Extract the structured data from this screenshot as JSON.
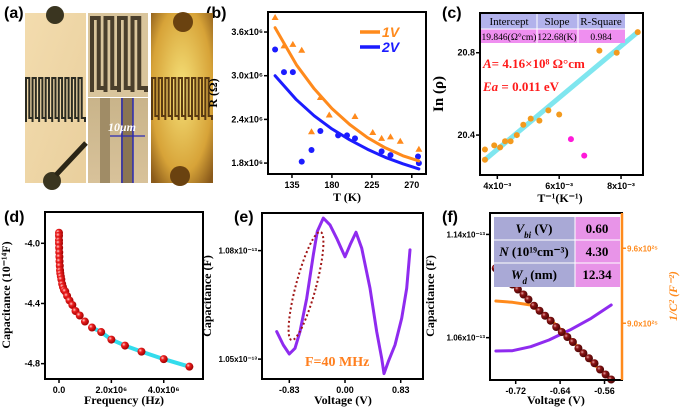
{
  "panel_labels": [
    "(a)",
    "(b)",
    "(c)",
    "(d)",
    "(e)",
    "(f)"
  ],
  "panel_a": {
    "scale_label": "10μm",
    "scale_color": "#2b2bb5"
  },
  "colors": {
    "orange": "#ff8a1c",
    "blue": "#1c1cff",
    "cyan": "#7fe6ef",
    "magenta": "#ff1ad9",
    "red": "#e51212",
    "purple": "#8f2bef",
    "brown": "#8b1414",
    "dark_orange_text": "#ff7f1e",
    "annot_red": "#ff1a1a",
    "table_lavender": "#b2b2ec",
    "table_pink": "#ef8ff0",
    "table_f_left": "#a9a9d6",
    "table_f_right": "#e894e8"
  },
  "chart_data": [
    {
      "panel": "(b)",
      "type": "scatter",
      "xlabel": "T (K)",
      "ylabel": "R (Ω)",
      "xlim": [
        108,
        286
      ],
      "ylim": [
        1650000,
        3875000
      ],
      "xticks": [
        {
          "v": 135,
          "label": "135"
        },
        {
          "v": 180,
          "label": "180"
        },
        {
          "v": 225,
          "label": "225"
        },
        {
          "v": 270,
          "label": "270"
        }
      ],
      "yticks": [
        {
          "v": 1800000,
          "label": "1.8x10⁶"
        },
        {
          "v": 2400000,
          "label": "2.4x10⁶"
        },
        {
          "v": 3000000,
          "label": "3.0x10⁶"
        },
        {
          "v": 3600000,
          "label": "3.6x10⁶"
        }
      ],
      "legend": {
        "placement": "top-right",
        "entries": [
          {
            "name": "1V",
            "color": "#ff8a1c"
          },
          {
            "name": "2V",
            "color": "#1c1cff"
          }
        ]
      },
      "series": [
        {
          "name": "1V",
          "type": "scatter",
          "marker": "triangle",
          "color": "#ff8a1c",
          "x": [
            116,
            126,
            136,
            146,
            157,
            167,
            177,
            206,
            226,
            236,
            246,
            257,
            278
          ],
          "y": [
            3800000,
            3410000,
            3430000,
            3350000,
            2230000,
            2700000,
            2460000,
            2440000,
            2220000,
            2140000,
            2160000,
            2100000,
            1990000
          ]
        },
        {
          "name": "2V",
          "type": "scatter",
          "marker": "circle",
          "color": "#1c1cff",
          "x": [
            116,
            126,
            136,
            146,
            157,
            167,
            187,
            197,
            206,
            236,
            246,
            277,
            278
          ],
          "y": [
            3360000,
            3050000,
            3050000,
            1820000,
            1980000,
            2240000,
            2180000,
            2180000,
            2140000,
            1960000,
            1910000,
            1890000,
            1800000
          ]
        },
        {
          "name": "1V",
          "type": "line",
          "color": "#ff8a1c",
          "x": [
            116,
            140,
            160,
            180,
            200,
            220,
            240,
            260,
            278
          ],
          "y": [
            3660000,
            3150000,
            2820000,
            2550000,
            2330000,
            2150000,
            2010000,
            1900000,
            1830000
          ]
        },
        {
          "name": "2V",
          "type": "line",
          "color": "#1c1cff",
          "x": [
            116,
            140,
            160,
            180,
            200,
            220,
            240,
            260,
            278
          ],
          "y": [
            3000000,
            2670000,
            2450000,
            2270000,
            2120000,
            1990000,
            1880000,
            1790000,
            1720000
          ]
        }
      ]
    },
    {
      "panel": "(c)",
      "type": "scatter",
      "xlabel": "T⁻¹(K⁻¹)",
      "ylabel": "In (ρ)",
      "xlim": [
        0.00344,
        0.00871
      ],
      "ylim": [
        20.206,
        20.993
      ],
      "xticks": [
        {
          "v": 0.004,
          "label": "4x10⁻³"
        },
        {
          "v": 0.006,
          "label": "6x10⁻³"
        },
        {
          "v": 0.008,
          "label": "8x10⁻³"
        }
      ],
      "yticks": [
        {
          "v": 20.4,
          "label": "20.4"
        },
        {
          "v": 20.8,
          "label": "20.8"
        }
      ],
      "table": {
        "headers": [
          "Intercept",
          "Slope",
          "R-Square"
        ],
        "row": [
          "19.846(Ω°cm)",
          "122.68(K)",
          "0.984"
        ]
      },
      "annotations": {
        "A_label": "A",
        "A_value": "= 4.16×10⁸ Ω°cm",
        "Ea_label": "Ea",
        "Ea_value": " = 0.011 eV"
      },
      "series": [
        {
          "type": "line",
          "color": "#7fe6ef",
          "x": [
            0.0036,
            0.00854
          ],
          "y": [
            20.28,
            20.9
          ]
        },
        {
          "type": "scatter",
          "marker": "circle",
          "color": "#f39a1e",
          "x": [
            0.0036,
            0.0036,
            0.0039,
            0.00409,
            0.00425,
            0.00443,
            0.00463,
            0.00484,
            0.00508,
            0.00536,
            0.00565,
            0.006,
            0.0073,
            0.00786,
            0.00854
          ],
          "y": [
            20.28,
            20.33,
            20.35,
            20.34,
            20.37,
            20.37,
            20.4,
            20.45,
            20.48,
            20.47,
            20.52,
            20.5,
            20.81,
            20.8,
            20.9
          ]
        },
        {
          "type": "scatter",
          "marker": "circle",
          "color": "#ff1ad9",
          "x": [
            0.00638,
            0.00681
          ],
          "y": [
            20.38,
            20.3
          ]
        }
      ]
    },
    {
      "panel": "(d)",
      "type": "scatter",
      "xlabel": "Frequency (Hz)",
      "ylabel": "Capacitance (10⁻¹⁴F)",
      "xlim": [
        -535000,
        5500000
      ],
      "ylim": [
        -4.902,
        -3.792
      ],
      "xticks": [
        {
          "v": 0,
          "label": "0.0"
        },
        {
          "v": 2000000,
          "label": "2.0x10⁶"
        },
        {
          "v": 4000000,
          "label": "4.0x10⁶"
        }
      ],
      "yticks": [
        {
          "v": -4.0,
          "label": "-4.0"
        },
        {
          "v": -4.4,
          "label": "-4.4"
        },
        {
          "v": -4.8,
          "label": "-4.8"
        }
      ],
      "series": [
        {
          "type": "line",
          "color": "#33dcec",
          "x": [
            1260000,
            1610000,
            2000000,
            2520000,
            3150000,
            4000000,
            4980000
          ],
          "y": [
            -4.56,
            -4.59,
            -4.64,
            -4.68,
            -4.72,
            -4.77,
            -4.82
          ]
        },
        {
          "type": "scatter",
          "marker": "sphere",
          "color": "#e51212",
          "x": [
            0,
            0,
            0,
            0,
            5000,
            10000,
            15000,
            20000,
            30000,
            40000,
            50000,
            70000,
            90000,
            120000,
            150000,
            190000,
            240000,
            310000,
            400000,
            510000,
            630000,
            790000,
            990000,
            1260000,
            1610000,
            2000000,
            2520000,
            3150000,
            4000000,
            4980000
          ],
          "y": [
            -3.93,
            -3.95,
            -3.98,
            -4.0,
            -4.03,
            -4.06,
            -4.09,
            -4.12,
            -4.15,
            -4.18,
            -4.2,
            -4.22,
            -4.24,
            -4.27,
            -4.29,
            -4.31,
            -4.32,
            -4.35,
            -4.38,
            -4.41,
            -4.45,
            -4.48,
            -4.52,
            -4.56,
            -4.59,
            -4.64,
            -4.68,
            -4.72,
            -4.77,
            -4.82
          ]
        }
      ]
    },
    {
      "panel": "(e)",
      "type": "line",
      "xlabel": "Voltage (V)",
      "ylabel": "Capacitance (F)",
      "xlim": [
        -1.237,
        1.162
      ],
      "ylim": [
        1.0445e-13,
        1.0904e-13
      ],
      "xticks": [
        {
          "v": -0.83,
          "label": "-0.83"
        },
        {
          "v": 0,
          "label": "0.00"
        },
        {
          "v": 0.83,
          "label": "0.83"
        }
      ],
      "yticks": [
        {
          "v": 1.05e-13,
          "label": "1.05x10⁻¹³"
        },
        {
          "v": 1.08e-13,
          "label": "1.08x10⁻¹³"
        }
      ],
      "annotation": "F=40 MHz",
      "series": [
        {
          "type": "line",
          "color": "#8f2bef",
          "x": [
            -1.018,
            -0.919,
            -0.83,
            -0.745,
            -0.671,
            -0.571,
            -0.472,
            -0.413,
            -0.323,
            -0.224,
            -0.124,
            0,
            0.075,
            0.164,
            0.248,
            0.373,
            0.472,
            0.547,
            0.581,
            0.645,
            0.745,
            0.844,
            0.919,
            0.968
          ],
          "y": [
            1.0576e-13,
            1.0539e-13,
            1.0514e-13,
            1.053e-13,
            1.0576e-13,
            1.0668e-13,
            1.0788e-13,
            1.0853e-13,
            1.089e-13,
            1.0871e-13,
            1.0834e-13,
            1.0783e-13,
            1.0816e-13,
            1.0851e-13,
            1.0807e-13,
            1.0696e-13,
            1.0576e-13,
            1.0502e-13,
            1.046e-13,
            1.0493e-13,
            1.0539e-13,
            1.0613e-13,
            1.0696e-13,
            1.0802e-13
          ]
        }
      ]
    },
    {
      "panel": "(f)",
      "type": "line",
      "xlabel": "Voltage (V)",
      "ylabel": "Capacitance (F)",
      "ylabel_right": "1/C² (F⁻²)",
      "xlim": [
        -0.7663,
        -0.5285
      ],
      "ylim": [
        1.0272e-13,
        1.1566e-13
      ],
      "ylim_right": [
        8.546e+25,
        9.882e+25
      ],
      "xticks": [
        {
          "v": -0.72,
          "label": "-0.72"
        },
        {
          "v": -0.64,
          "label": "-0.64"
        },
        {
          "v": -0.56,
          "label": "-0.56"
        }
      ],
      "yticks": [
        {
          "v": 1.06e-13,
          "label": "1.06x10⁻¹³"
        },
        {
          "v": 1.14e-13,
          "label": "1.14x10⁻¹³"
        }
      ],
      "yticks_right": [
        {
          "v": 9e+25,
          "label": "9.0x10²⁵"
        },
        {
          "v": 9.6e+25,
          "label": "9.6x10²⁵"
        }
      ],
      "table": [
        {
          "sym": "V",
          "sub": "bi",
          "unit": " (V)",
          "value": "0.60"
        },
        {
          "sym": "N",
          "sub": "",
          "unit": " (10¹⁹cm⁻³)",
          "value": "4.30"
        },
        {
          "sym": "W",
          "sub": "d",
          "unit": " (nm)",
          "value": "12.34"
        }
      ],
      "series": [
        {
          "type": "line",
          "axis": "left",
          "color": "#8f2bef",
          "x": [
            -0.7556,
            -0.726,
            -0.693,
            -0.66,
            -0.622,
            -0.584,
            -0.548
          ],
          "y": [
            1.0497e-13,
            1.0499e-13,
            1.053e-13,
            1.0582e-13,
            1.066e-13,
            1.075e-13,
            1.0853e-13
          ]
        },
        {
          "type": "line",
          "axis": "right",
          "color": "#ff8a1c",
          "x": [
            -0.7556,
            -0.726,
            -0.693,
            -0.66,
            -0.622,
            -0.584,
            -0.548
          ],
          "y": [
            9.178e+25,
            9.168e+25,
            9.146e+25,
            9.04e+25,
            8.88e+25,
            8.69e+25,
            8.55e+25
          ]
        },
        {
          "type": "scatter",
          "axis": "right",
          "marker": "sphere",
          "color": "#8b1414",
          "x": [
            -0.756,
            -0.746,
            -0.736,
            -0.726,
            -0.716,
            -0.706,
            -0.697,
            -0.687,
            -0.677,
            -0.667,
            -0.657,
            -0.647,
            -0.637,
            -0.627,
            -0.617,
            -0.607,
            -0.598,
            -0.588,
            -0.578,
            -0.568,
            -0.558,
            -0.548
          ],
          "y": [
            9.44e+25,
            9.4e+25,
            9.36e+25,
            9.31e+25,
            9.27e+25,
            9.23e+25,
            9.19e+25,
            9.14e+25,
            9.1e+25,
            9.06e+25,
            9.02e+25,
            8.97e+25,
            8.93e+25,
            8.89e+25,
            8.85e+25,
            8.8e+25,
            8.76e+25,
            8.72e+25,
            8.68e+25,
            8.63e+25,
            8.59e+25,
            8.55e+25
          ]
        }
      ]
    }
  ]
}
